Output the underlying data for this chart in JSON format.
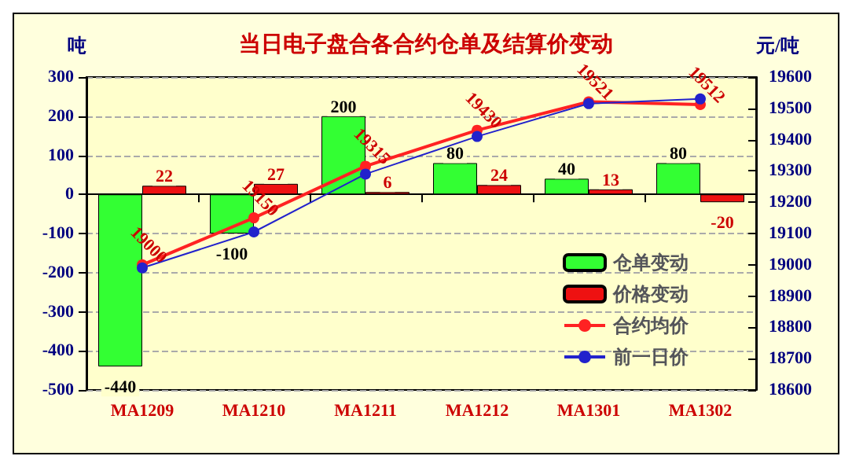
{
  "chart_data": {
    "type": "bar",
    "title": "当日电子盘合各合约仓单及结算价变动",
    "ylabel": "吨",
    "y2label": "元/吨",
    "categories": [
      "MA1209",
      "MA1210",
      "MA1211",
      "MA1212",
      "MA1301",
      "MA1302"
    ],
    "series": [
      {
        "name": "仓单变动",
        "color": "#33ff33",
        "values": [
          -440,
          -100,
          200,
          80,
          40,
          80
        ],
        "value_labels": [
          "-440",
          "-100",
          "200",
          "80",
          "40",
          "80"
        ]
      },
      {
        "name": "价格变动",
        "color": "#ee1111",
        "values": [
          22,
          27,
          6,
          24,
          13,
          -20
        ],
        "value_labels": [
          "22",
          "27",
          "6",
          "24",
          "13",
          "-20"
        ]
      },
      {
        "name": "合约均价",
        "type": "line",
        "axis": "y2",
        "color": "#ff2222",
        "marker": "circle",
        "values": [
          19000,
          19150,
          19315,
          19430,
          19521,
          19512
        ],
        "value_labels": [
          "19000",
          "19150",
          "19315",
          "19430",
          "19521",
          "19512"
        ]
      },
      {
        "name": "前一日价",
        "type": "line",
        "axis": "y2",
        "color": "#2222cc",
        "marker": "circle",
        "values": [
          18990,
          19105,
          19290,
          19410,
          19515,
          19530
        ]
      }
    ],
    "ylim": [
      -500,
      300
    ],
    "yticks": [
      -500,
      -400,
      -300,
      -200,
      -100,
      0,
      100,
      200,
      300
    ],
    "y2lim": [
      18600,
      19600
    ],
    "y2ticks": [
      18600,
      18700,
      18800,
      18900,
      19000,
      19100,
      19200,
      19300,
      19400,
      19500,
      19600
    ],
    "grid": "y",
    "legend": "bottom right"
  }
}
